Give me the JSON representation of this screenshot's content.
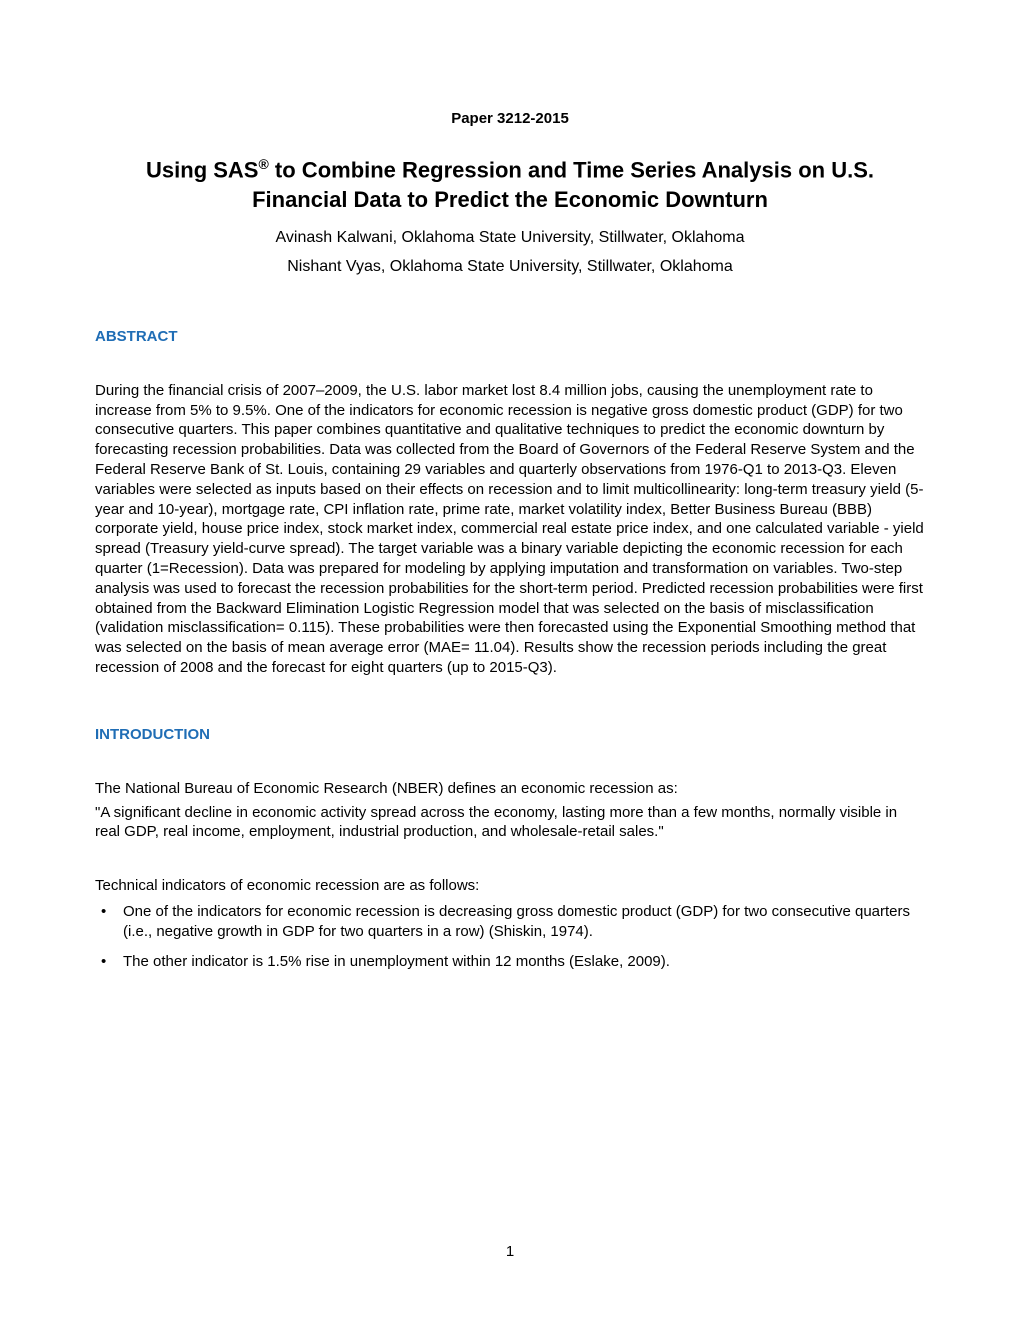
{
  "paper_number": "Paper 3212-2015",
  "title_line1": "Using SAS",
  "title_sup": "®",
  "title_line1_cont": " to Combine Regression and Time Series Analysis on U.S.",
  "title_line2": "Financial Data to Predict the Economic Downturn",
  "author1": "Avinash Kalwani, Oklahoma State University, Stillwater, Oklahoma",
  "author2": "Nishant Vyas, Oklahoma State University, Stillwater, Oklahoma",
  "sections": {
    "abstract": {
      "heading": "ABSTRACT",
      "body": "During the financial crisis of 2007–2009, the U.S. labor market lost 8.4 million jobs, causing the unemployment rate to increase from 5% to 9.5%. One of the indicators for economic recession is negative gross domestic product (GDP) for two consecutive quarters. This paper combines quantitative and qualitative techniques to predict the economic downturn by forecasting recession probabilities. Data was collected from the Board of Governors of the Federal Reserve System and the Federal Reserve Bank of St. Louis, containing 29 variables and quarterly observations from 1976-Q1 to 2013-Q3. Eleven variables were selected as inputs based on their effects on recession and to limit multicollinearity: long-term treasury yield (5-year and 10-year), mortgage rate, CPI inflation rate, prime rate, market volatility index, Better Business Bureau (BBB) corporate yield, house price index, stock market index, commercial real estate price index, and one calculated variable - yield spread (Treasury yield-curve spread). The target variable was a binary variable depicting the economic recession for each quarter (1=Recession). Data was prepared for modeling by applying imputation and transformation on variables. Two-step analysis was used to forecast the recession probabilities for the short-term period. Predicted recession probabilities were first obtained from the Backward Elimination Logistic Regression model that was selected on the basis of misclassification (validation misclassification= 0.115). These probabilities were then forecasted using the Exponential Smoothing method that was selected on the basis of mean average error (MAE= 11.04). Results show the recession periods including the great recession of 2008 and the forecast for eight quarters (up to 2015-Q3)."
    },
    "introduction": {
      "heading": "INTRODUCTION",
      "para1": "The National Bureau of Economic Research (NBER) defines an economic recession as:",
      "para2": "\"A significant decline in economic activity spread across the economy, lasting more than a few months, normally visible in real GDP, real income, employment, industrial production, and wholesale-retail sales.\"",
      "para3": "Technical indicators of economic recession are as follows:",
      "bullets": [
        "One of the indicators for economic recession is decreasing gross domestic product (GDP) for two consecutive quarters (i.e., negative growth in GDP for two quarters in a row) (Shiskin, 1974).",
        "The other indicator is 1.5% rise in unemployment within 12 months (Eslake, 2009)."
      ]
    }
  },
  "page_number": "1",
  "colors": {
    "heading_blue": "#1f6db5",
    "text_black": "#000000",
    "background": "#ffffff"
  }
}
